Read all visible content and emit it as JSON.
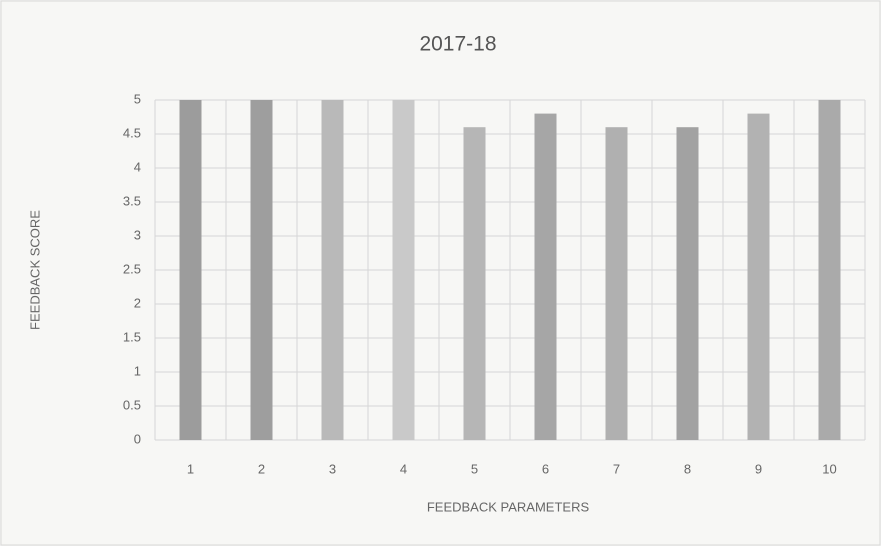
{
  "chart_data": {
    "type": "bar",
    "title": "2017-18",
    "x_label": "FEEDBACK PARAMETERS",
    "y_label": "FEEDBACK SCORE",
    "categories": [
      "1",
      "2",
      "3",
      "4",
      "5",
      "6",
      "7",
      "8",
      "9",
      "10"
    ],
    "values": [
      5,
      5,
      5,
      5,
      4.6,
      4.8,
      4.6,
      4.6,
      4.8,
      5
    ],
    "colors": [
      "#9c9c9c",
      "#9e9e9e",
      "#b9b9b9",
      "#c9c9c9",
      "#b6b6b6",
      "#a6a6a6",
      "#b0b0b0",
      "#a2a2a2",
      "#b2b2b2",
      "#aaaaaa"
    ],
    "ylim": [
      0,
      5
    ],
    "yticks": [
      0,
      0.5,
      1,
      1.5,
      2,
      2.5,
      3,
      3.5,
      4,
      4.5,
      5
    ],
    "grid": true
  }
}
